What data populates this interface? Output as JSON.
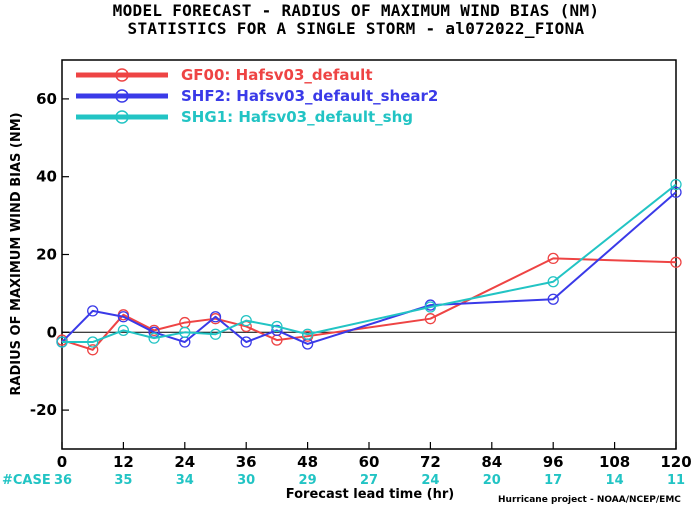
{
  "chart_data": {
    "type": "line",
    "title": [
      "MODEL FORECAST - RADIUS OF MAXIMUM WIND BIAS (NM)",
      "STATISTICS FOR A SINGLE STORM - al072022_FIONA"
    ],
    "xlabel": "Forecast lead time (hr)",
    "ylabel": "RADIUS OF MAXIMUM WIND BIAS (NM)",
    "xlim": [
      0,
      120
    ],
    "ylim": [
      -30,
      70
    ],
    "x_ticks": [
      0,
      12,
      24,
      36,
      48,
      60,
      72,
      84,
      96,
      108,
      120
    ],
    "y_ticks": [
      -20,
      0,
      20,
      40,
      60
    ],
    "grid": false,
    "legend_position": "top-left",
    "case_label": "#CASE",
    "case_x": [
      0,
      12,
      24,
      36,
      48,
      60,
      72,
      84,
      96,
      108,
      120
    ],
    "case_counts": [
      36,
      35,
      34,
      30,
      29,
      27,
      24,
      20,
      17,
      14,
      11
    ],
    "credit": "Hurricane project - NOAA/NCEP/EMC",
    "series": [
      {
        "name": "GF00: Hafsv03_default",
        "color": "#ee4444",
        "x": [
          0,
          6,
          12,
          18,
          24,
          30,
          36,
          42,
          48,
          72,
          96,
          120
        ],
        "y": [
          -2,
          -4.5,
          4.5,
          0.5,
          2.5,
          3.5,
          1.5,
          -2,
          -1,
          3.5,
          19,
          18
        ]
      },
      {
        "name": "SHF2: Hafsv03_default_shear2",
        "color": "#3a3ae8",
        "x": [
          0,
          6,
          12,
          18,
          24,
          30,
          36,
          42,
          48,
          72,
          96,
          120
        ],
        "y": [
          -2.5,
          5.5,
          4,
          0,
          -2.5,
          4,
          -2.5,
          0.5,
          -3,
          7,
          8.5,
          36
        ]
      },
      {
        "name": "SHG1: Hafsv03_default_shg",
        "color": "#22c4c4",
        "x": [
          0,
          6,
          12,
          18,
          24,
          30,
          36,
          42,
          48,
          72,
          96,
          120
        ],
        "y": [
          -2.5,
          -2.5,
          0.5,
          -1.5,
          0,
          -0.5,
          3,
          1.5,
          -0.5,
          6.5,
          13,
          38
        ]
      }
    ]
  }
}
